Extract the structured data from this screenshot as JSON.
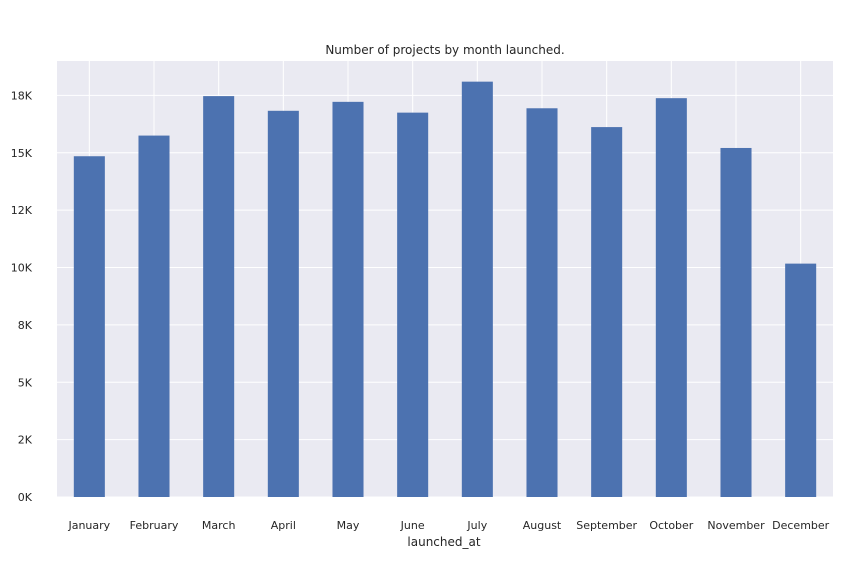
{
  "chart_data": {
    "type": "bar",
    "title": "Number of projects by month launched.",
    "xlabel": "launched_at",
    "ylabel": "",
    "categories": [
      "January",
      "February",
      "March",
      "April",
      "May",
      "June",
      "July",
      "August",
      "September",
      "October",
      "November",
      "December"
    ],
    "values": [
      14850,
      15750,
      17470,
      16830,
      17220,
      16750,
      18100,
      16940,
      16120,
      17380,
      15210,
      10170
    ],
    "ylim": [
      0,
      19000
    ],
    "yticks": [
      0,
      2500,
      5000,
      7500,
      10000,
      12500,
      15000,
      17500
    ],
    "ytick_labels": [
      "0K",
      "2K",
      "5K",
      "8K",
      "10K",
      "12K",
      "15K",
      "18K"
    ],
    "grid": true,
    "colors": {
      "bar": "#4c72b0",
      "plot_bg": "#eaeaf2",
      "grid": "#ffffff",
      "text": "#262626"
    }
  }
}
